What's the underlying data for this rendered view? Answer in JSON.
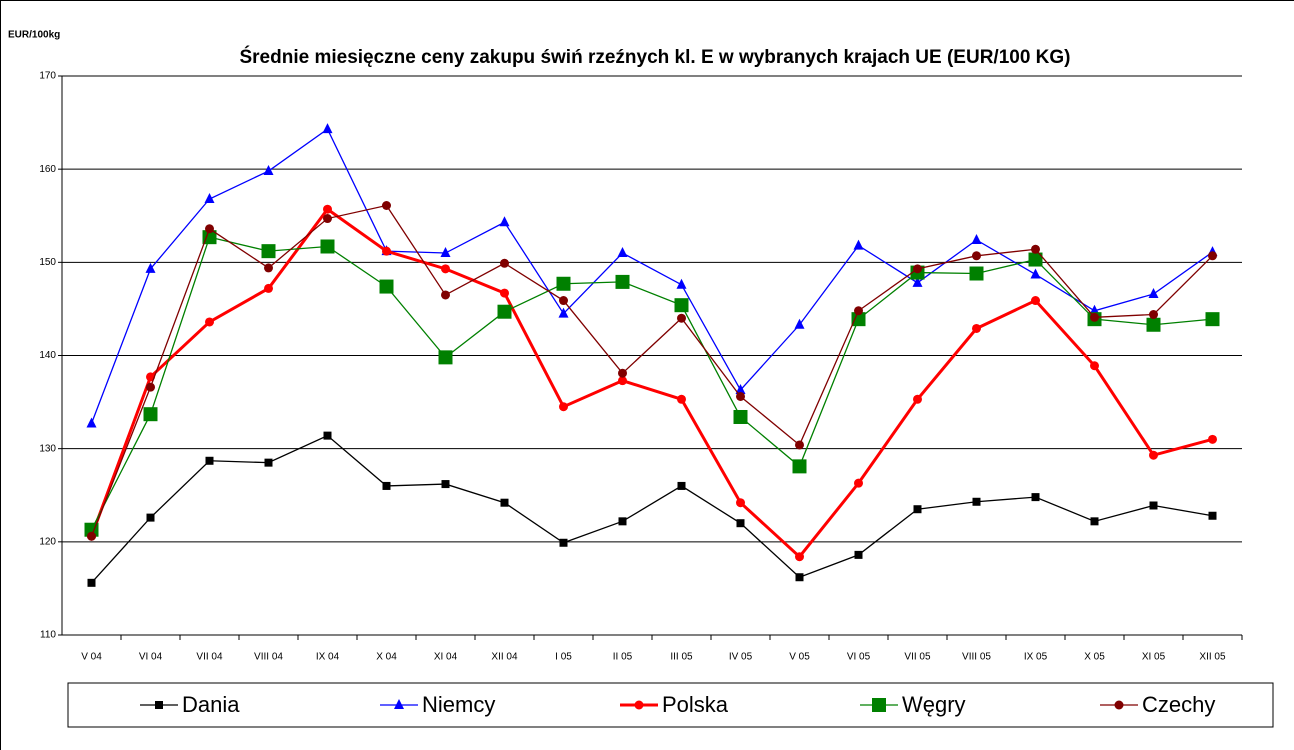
{
  "chart_data": {
    "type": "line",
    "title": "Średnie miesięczne ceny zakupu świń rzeźnych kl. E w wybranych krajach UE (EUR/100 KG)",
    "y_label": "EUR/100kg",
    "categories": [
      "V 04",
      "VI 04",
      "VII 04",
      "VIII 04",
      "IX 04",
      "X 04",
      "XI 04",
      "XII 04",
      "I 05",
      "II 05",
      "III 05",
      "IV 05",
      "V 05",
      "VI 05",
      "VII 05",
      "VIII 05",
      "IX 05",
      "X 05",
      "XI 05",
      "XII 05"
    ],
    "ylim": [
      110,
      170
    ],
    "yticks": [
      110,
      120,
      130,
      140,
      150,
      160,
      170
    ],
    "grid": true,
    "series": [
      {
        "name": "Dania",
        "color": "#000000",
        "marker": "square",
        "values": [
          115.6,
          122.6,
          128.7,
          128.5,
          131.4,
          126.0,
          126.2,
          124.2,
          119.9,
          122.2,
          126.0,
          122.0,
          116.2,
          118.6,
          123.5,
          124.3,
          124.8,
          122.2,
          123.9,
          122.8
        ]
      },
      {
        "name": "Niemcy",
        "color": "#0000ff",
        "marker": "triangle",
        "values": [
          132.7,
          149.3,
          156.8,
          159.8,
          164.3,
          151.2,
          151.0,
          154.3,
          144.5,
          151.0,
          147.6,
          136.3,
          143.3,
          151.8,
          147.8,
          152.4,
          148.7,
          144.8,
          146.6,
          151.1
        ]
      },
      {
        "name": "Polska",
        "color": "#ff0000",
        "marker": "circle",
        "values": [
          120.6,
          137.7,
          143.6,
          147.2,
          155.7,
          151.2,
          149.3,
          146.7,
          134.5,
          137.3,
          135.3,
          124.2,
          118.4,
          126.3,
          135.3,
          142.9,
          145.9,
          138.9,
          129.3,
          131.0
        ]
      },
      {
        "name": "Węgry",
        "color": "#008000",
        "marker": "bigsquare",
        "values": [
          121.3,
          133.7,
          152.7,
          151.2,
          151.7,
          147.4,
          139.8,
          144.7,
          147.7,
          147.9,
          145.4,
          133.4,
          128.1,
          143.9,
          148.9,
          148.8,
          150.3,
          143.9,
          143.3,
          143.9
        ]
      },
      {
        "name": "Czechy",
        "color": "#800000",
        "marker": "circle",
        "values": [
          120.6,
          136.6,
          153.6,
          149.4,
          154.7,
          156.1,
          146.5,
          149.9,
          145.9,
          138.1,
          144.0,
          135.6,
          130.4,
          144.8,
          149.3,
          150.7,
          151.4,
          144.1,
          144.4,
          150.7
        ]
      }
    ]
  }
}
